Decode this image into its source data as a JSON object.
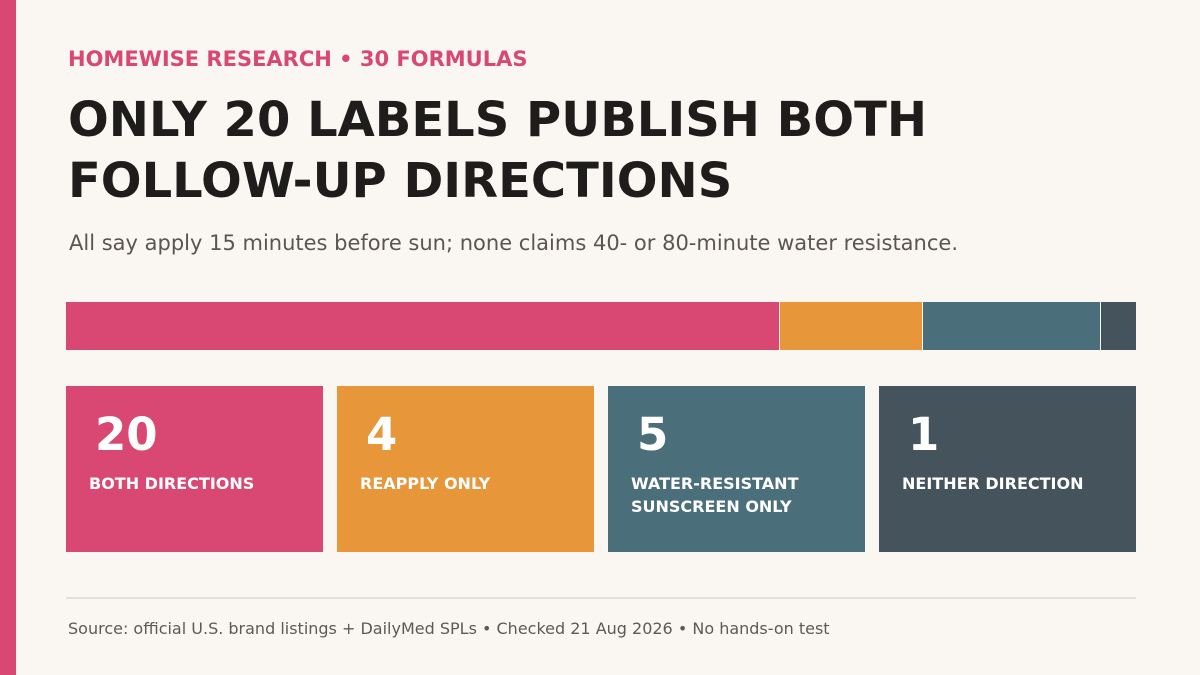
{
  "kicker": "HOMEWISE RESEARCH • 30 FORMULAS",
  "title": "ONLY 20 LABELS PUBLISH BOTH FOLLOW-UP DIRECTIONS",
  "subtitle": "All say apply 15 minutes before sun; none claims 40- or 80-minute water resistance.",
  "source": "Source: official U.S. brand listings + DailyMed SPLs • Checked 21 Aug 2026 • No hands-on test",
  "colors": {
    "accent": "#d94873",
    "both": "#d94873",
    "reapply": "#e8963a",
    "water": "#4a6f7b",
    "neither": "#45535d",
    "background": "#faf7f2"
  },
  "chart_data": {
    "type": "bar",
    "orientation": "horizontal-stacked",
    "total": 30,
    "categories": [
      "BOTH DIRECTIONS",
      "REAPPLY ONLY",
      "WATER-RESISTANT SUNSCREEN ONLY",
      "NEITHER DIRECTION"
    ],
    "values": [
      20,
      4,
      5,
      1
    ],
    "legend": "cards-below",
    "grid": false
  }
}
